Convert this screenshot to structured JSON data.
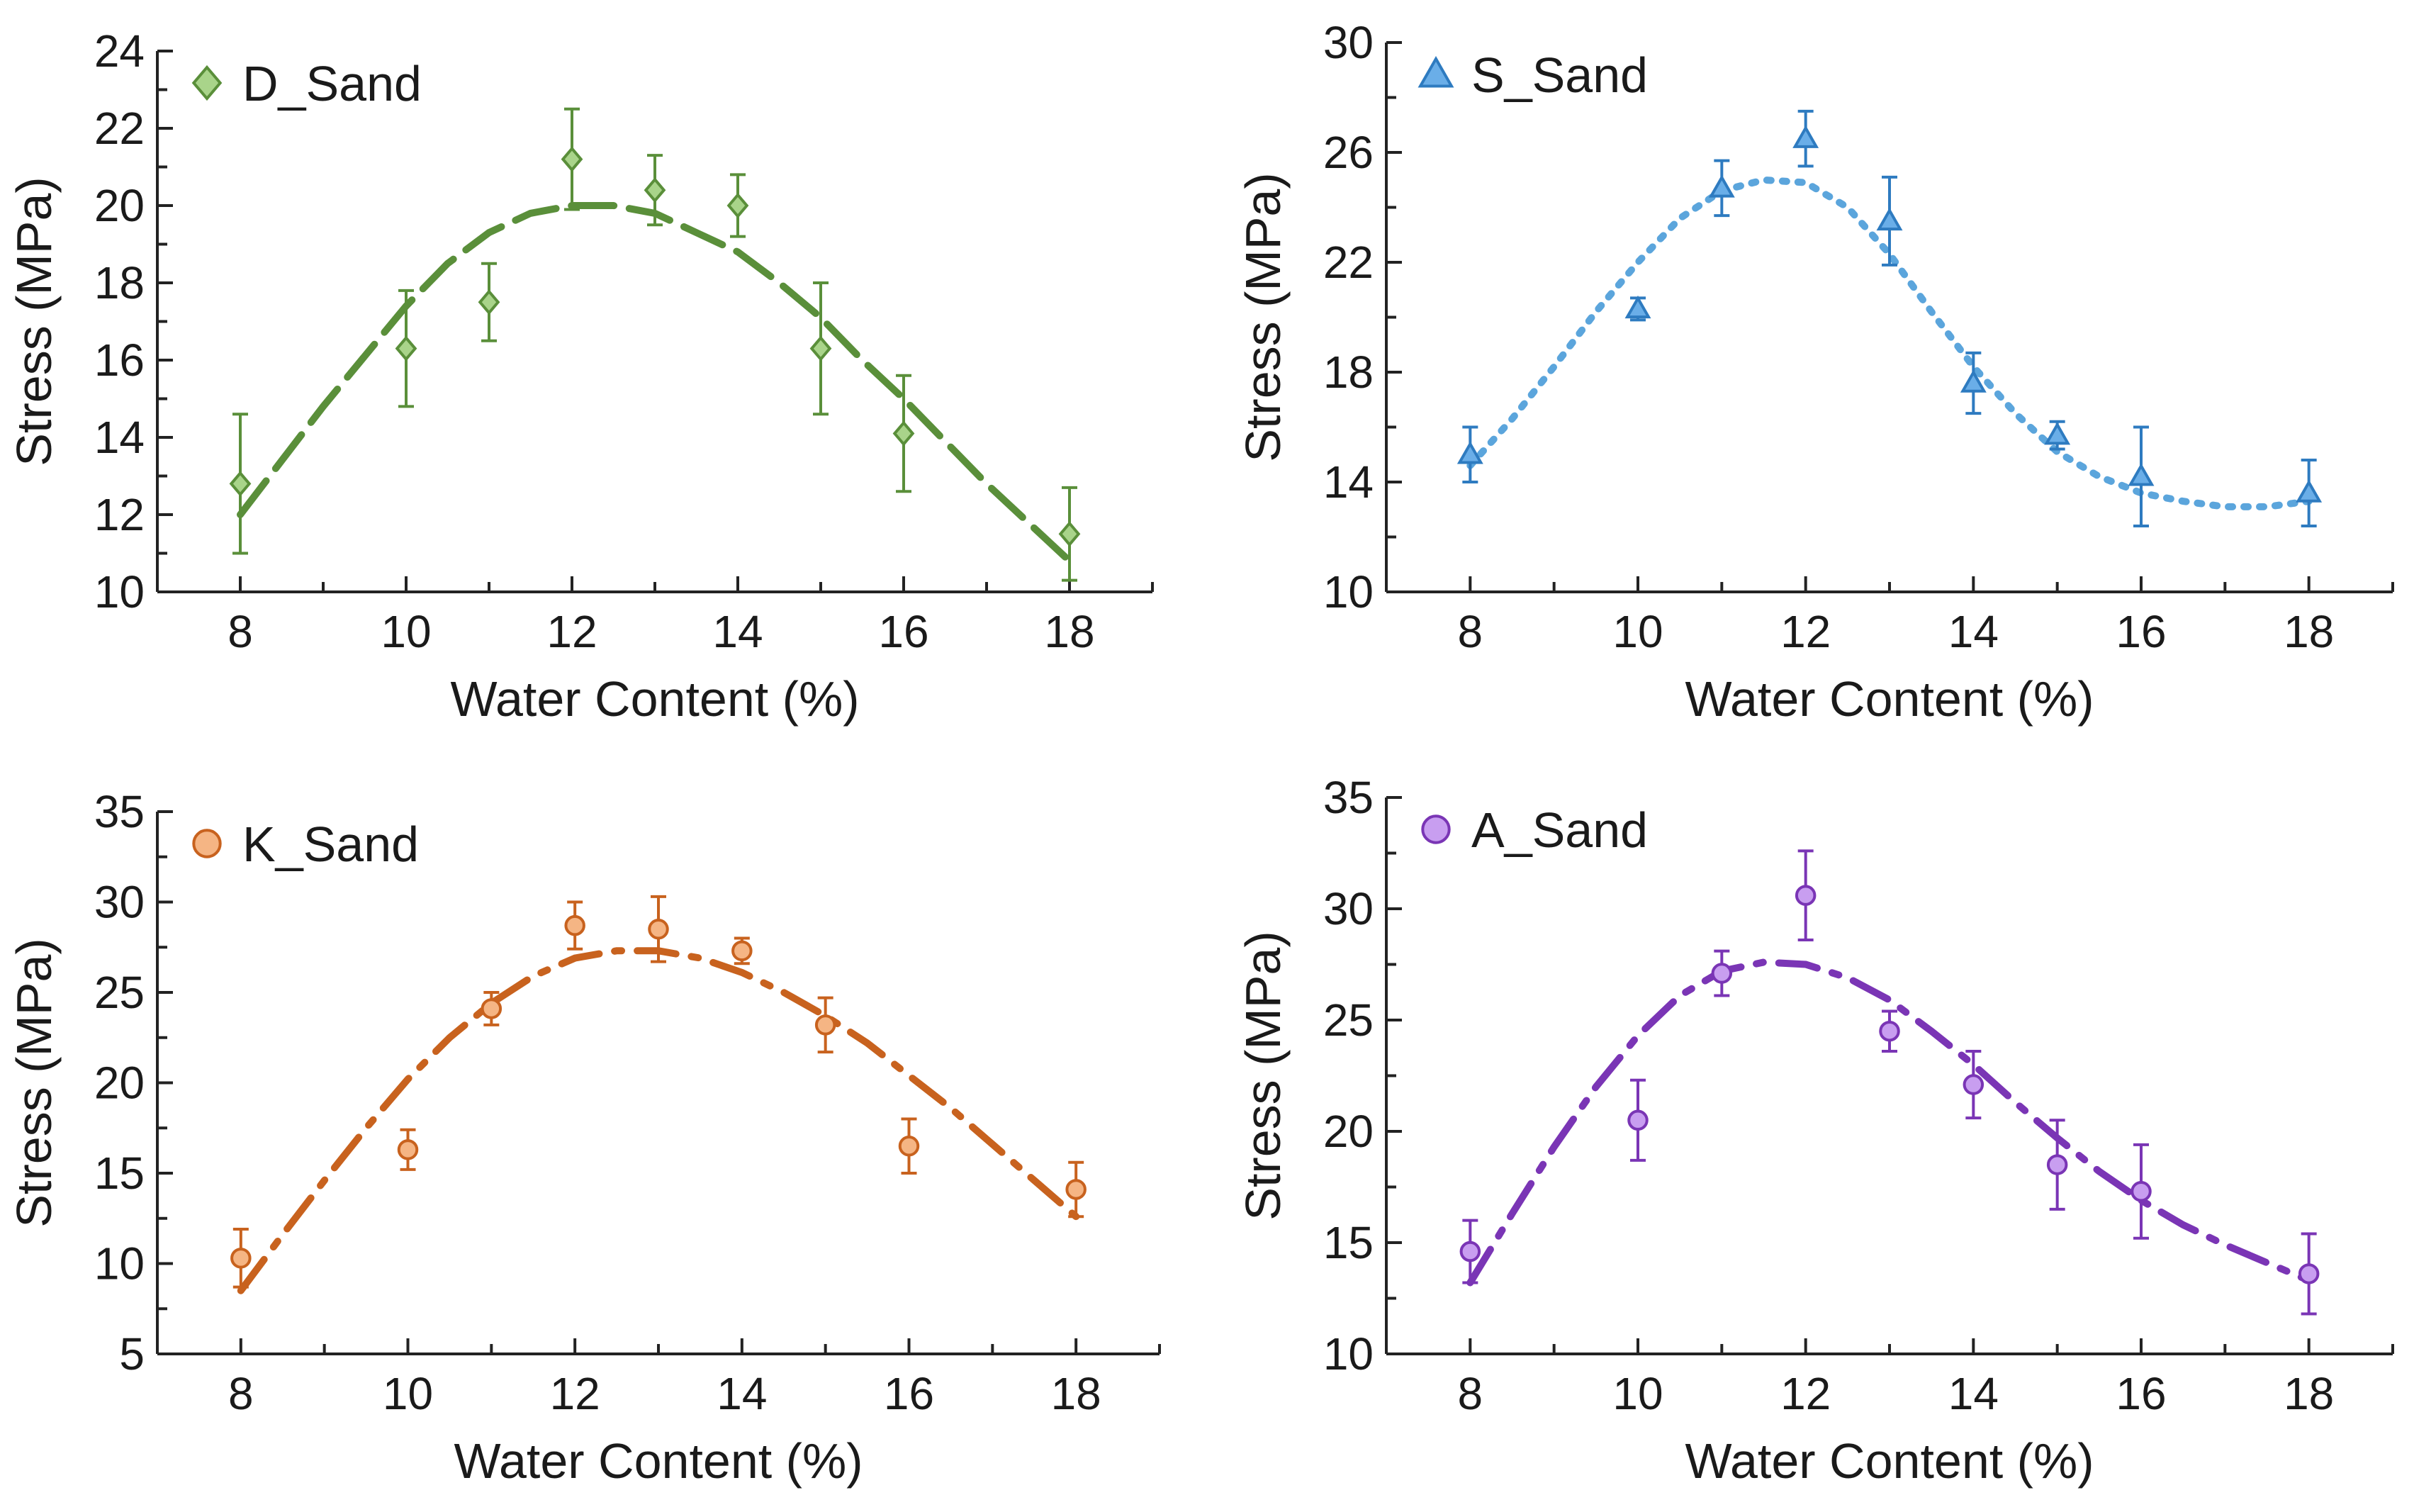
{
  "figure": {
    "x_axis_label": "Water Content (%)",
    "y_axis_label": "Stress (MPa)"
  },
  "chart_data": [
    {
      "type": "scatter",
      "name": "D_Sand",
      "title": "",
      "xlabel": "Water Content (%)",
      "ylabel": "Stress (MPa)",
      "legend": "D_Sand",
      "legend_position": "top-left",
      "marker": "diamond",
      "color": "#5a8f3a",
      "marker_fill": "#a9d48a",
      "line_style": "long-dash",
      "xlim": [
        7,
        19
      ],
      "ylim": [
        10,
        24
      ],
      "xticks": [
        8,
        10,
        12,
        14,
        16,
        18
      ],
      "yticks": [
        10,
        12,
        14,
        16,
        18,
        20,
        22,
        24
      ],
      "x": [
        8,
        10,
        11,
        12,
        13,
        14,
        15,
        16,
        18
      ],
      "y": [
        12.8,
        16.3,
        17.5,
        21.2,
        20.4,
        20.0,
        16.3,
        14.1,
        11.5
      ],
      "error": [
        1.8,
        1.5,
        1.0,
        1.3,
        0.9,
        0.8,
        1.7,
        1.5,
        1.2
      ],
      "fit": {
        "x": [
          8.0,
          8.5,
          9.0,
          9.5,
          10.0,
          10.5,
          11.0,
          11.5,
          12.0,
          12.5,
          13.0,
          13.5,
          14.0,
          14.5,
          15.0,
          15.5,
          16.0,
          16.5,
          17.0,
          17.5,
          18.0
        ],
        "y": [
          12.0,
          13.4,
          14.8,
          16.1,
          17.4,
          18.5,
          19.3,
          19.8,
          20.0,
          20.0,
          19.8,
          19.3,
          18.8,
          18.0,
          17.1,
          16.0,
          15.0,
          13.9,
          12.8,
          11.8,
          10.8
        ]
      }
    },
    {
      "type": "scatter",
      "name": "S_Sand",
      "title": "",
      "xlabel": "Water Content (%)",
      "ylabel": "Stress (MPa)",
      "legend": "S_Sand",
      "legend_position": "top-left",
      "marker": "triangle",
      "color": "#2e7bc0",
      "marker_fill": "#6aaee8",
      "line_color": "#5ba5dc",
      "line_style": "dotted",
      "xlim": [
        7,
        19
      ],
      "ylim": [
        10,
        30
      ],
      "xticks": [
        8,
        10,
        12,
        14,
        16,
        18
      ],
      "yticks": [
        10,
        14,
        18,
        22,
        26,
        30
      ],
      "x": [
        8,
        10,
        11,
        12,
        13,
        14,
        15,
        16,
        18
      ],
      "y": [
        15.0,
        20.3,
        24.7,
        26.5,
        23.5,
        17.6,
        15.7,
        14.2,
        13.6
      ],
      "error": [
        1.0,
        0.4,
        1.0,
        1.0,
        1.6,
        1.1,
        0.5,
        1.8,
        1.2
      ],
      "fit": {
        "x": [
          8.0,
          8.5,
          9.0,
          9.5,
          10.0,
          10.5,
          11.0,
          11.5,
          12.0,
          12.5,
          13.0,
          13.5,
          14.0,
          14.5,
          15.0,
          15.5,
          16.0,
          16.5,
          17.0,
          17.5,
          18.0
        ],
        "y": [
          14.6,
          16.3,
          18.2,
          20.2,
          22.0,
          23.6,
          24.6,
          25.0,
          24.9,
          24.0,
          22.3,
          20.2,
          18.2,
          16.5,
          15.1,
          14.2,
          13.6,
          13.3,
          13.1,
          13.1,
          13.3
        ]
      }
    },
    {
      "type": "scatter",
      "name": "K_Sand",
      "title": "",
      "xlabel": "Water Content (%)",
      "ylabel": "Stress (MPa)",
      "legend": "K_Sand",
      "legend_position": "top-left",
      "marker": "circle",
      "color": "#c8621e",
      "marker_fill": "#f5b584",
      "line_style": "dash-dot",
      "xlim": [
        7,
        19
      ],
      "ylim": [
        5,
        35
      ],
      "xticks": [
        8,
        10,
        12,
        14,
        16,
        18
      ],
      "yticks": [
        5,
        10,
        15,
        20,
        25,
        30,
        35
      ],
      "x": [
        8,
        10,
        11,
        12,
        13,
        14,
        15,
        16,
        18
      ],
      "y": [
        10.3,
        16.3,
        24.1,
        28.7,
        28.5,
        27.3,
        23.2,
        16.5,
        14.1
      ],
      "error": [
        1.6,
        1.1,
        0.9,
        1.3,
        1.8,
        0.7,
        1.5,
        1.5,
        1.5
      ],
      "fit": {
        "x": [
          8.0,
          8.5,
          9.0,
          9.5,
          10.0,
          10.5,
          11.0,
          11.5,
          12.0,
          12.5,
          13.0,
          13.5,
          14.0,
          14.5,
          15.0,
          15.5,
          16.0,
          16.5,
          17.0,
          17.5,
          18.0
        ],
        "y": [
          8.5,
          11.6,
          14.6,
          17.5,
          20.2,
          22.5,
          24.4,
          25.9,
          26.9,
          27.3,
          27.3,
          26.9,
          26.1,
          25.0,
          23.7,
          22.2,
          20.4,
          18.6,
          16.6,
          14.6,
          12.6
        ]
      }
    },
    {
      "type": "scatter",
      "name": "A_Sand",
      "title": "",
      "xlabel": "Water Content (%)",
      "ylabel": "Stress (MPa)",
      "legend": "A_Sand",
      "legend_position": "top-left",
      "marker": "circle",
      "color": "#7a35b5",
      "marker_fill": "#c89ef0",
      "line_style": "dash-dot",
      "xlim": [
        7,
        19
      ],
      "ylim": [
        10,
        35
      ],
      "xticks": [
        8,
        10,
        12,
        14,
        16,
        18
      ],
      "yticks": [
        10,
        15,
        20,
        25,
        30,
        35
      ],
      "x": [
        8,
        10,
        11,
        12,
        13,
        14,
        15,
        16,
        18
      ],
      "y": [
        14.6,
        20.5,
        27.1,
        30.6,
        24.5,
        22.1,
        18.5,
        17.3,
        13.6
      ],
      "error": [
        1.4,
        1.8,
        1.0,
        2.0,
        0.9,
        1.5,
        2.0,
        2.1,
        1.8
      ],
      "fit": {
        "x": [
          8.0,
          8.5,
          9.0,
          9.5,
          10.0,
          10.5,
          11.0,
          11.5,
          12.0,
          12.5,
          13.0,
          13.5,
          14.0,
          14.5,
          15.0,
          15.5,
          16.0,
          16.5,
          17.0,
          17.5,
          18.0
        ],
        "y": [
          13.2,
          16.3,
          19.3,
          22.0,
          24.3,
          26.1,
          27.2,
          27.6,
          27.5,
          26.9,
          25.9,
          24.5,
          23.0,
          21.3,
          19.7,
          18.2,
          16.9,
          15.8,
          14.9,
          14.1,
          13.3
        ]
      }
    }
  ]
}
